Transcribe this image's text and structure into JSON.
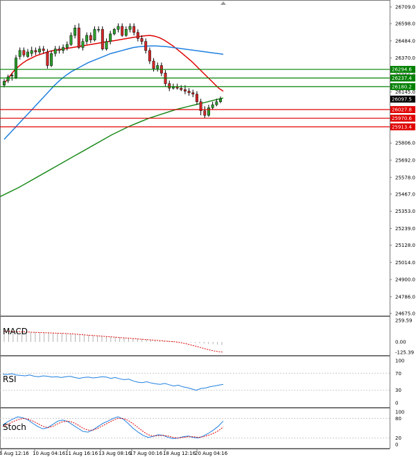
{
  "chart_data": {
    "type": "candlestick",
    "instrument_title": "",
    "price_axis": {
      "ticks": [
        "26709.0",
        "26598.0",
        "26484.0",
        "26370.0",
        "26256.0",
        "26145.0",
        "25806.0",
        "25692.0",
        "25578.0",
        "25467.0",
        "25353.0",
        "25239.0",
        "25128.0",
        "25014.0",
        "24900.0",
        "24786.0",
        "24675.0"
      ]
    },
    "time_axis": {
      "ticks": [
        "6 Aug 12:16",
        "10 Aug 04:16",
        "11 Aug 16:16",
        "13 Aug 08:16",
        "17 Aug 00:16",
        "18 Aug 12:16",
        "20 Aug 04:16"
      ]
    },
    "current_price": "26097.5",
    "levels": [
      {
        "value": "26294.6",
        "kind": "resistance",
        "color": "#008000"
      },
      {
        "value": "26237.4",
        "kind": "resistance",
        "color": "#008000"
      },
      {
        "value": "26180.2",
        "kind": "resistance",
        "color": "#008000"
      },
      {
        "value": "26027.8",
        "kind": "support",
        "color": "#e00000"
      },
      {
        "value": "25970.6",
        "kind": "support",
        "color": "#e00000"
      },
      {
        "value": "25913.4",
        "kind": "support",
        "color": "#e00000"
      }
    ],
    "candles": [
      [
        26190,
        26215,
        26175,
        26230
      ],
      [
        26220,
        26245,
        26205,
        26260
      ],
      [
        26250,
        26255,
        26220,
        26270
      ],
      [
        26240,
        26370,
        26230,
        26390
      ],
      [
        26380,
        26420,
        26360,
        26440
      ],
      [
        26420,
        26390,
        26375,
        26440
      ],
      [
        26380,
        26410,
        26370,
        26430
      ],
      [
        26400,
        26420,
        26380,
        26445
      ],
      [
        26420,
        26410,
        26390,
        26440
      ],
      [
        26410,
        26430,
        26395,
        26450
      ],
      [
        26430,
        26420,
        26400,
        26450
      ],
      [
        26410,
        26320,
        26300,
        26430
      ],
      [
        26320,
        26400,
        26310,
        26420
      ],
      [
        26400,
        26430,
        26380,
        26450
      ],
      [
        26430,
        26420,
        26400,
        26450
      ],
      [
        26420,
        26440,
        26400,
        26460
      ],
      [
        26440,
        26460,
        26420,
        26480
      ],
      [
        26460,
        26520,
        26450,
        26540
      ],
      [
        26520,
        26570,
        26500,
        26590
      ],
      [
        26570,
        26440,
        26430,
        26600
      ],
      [
        26440,
        26480,
        26420,
        26500
      ],
      [
        26480,
        26520,
        26460,
        26540
      ],
      [
        26520,
        26490,
        26470,
        26540
      ],
      [
        26490,
        26560,
        26480,
        26580
      ],
      [
        26560,
        26560,
        26540,
        26580
      ],
      [
        26560,
        26430,
        26420,
        26580
      ],
      [
        26430,
        26480,
        26420,
        26500
      ],
      [
        26480,
        26530,
        26460,
        26550
      ],
      [
        26530,
        26560,
        26520,
        26570
      ],
      [
        26560,
        26580,
        26540,
        26600
      ],
      [
        26580,
        26520,
        26510,
        26600
      ],
      [
        26520,
        26560,
        26510,
        26580
      ],
      [
        26560,
        26580,
        26540,
        26600
      ],
      [
        26580,
        26540,
        26520,
        26600
      ],
      [
        26540,
        26500,
        26480,
        26560
      ],
      [
        26500,
        26480,
        26460,
        26520
      ],
      [
        26480,
        26420,
        26400,
        26500
      ],
      [
        26420,
        26350,
        26330,
        26440
      ],
      [
        26350,
        26300,
        26280,
        26370
      ],
      [
        26300,
        26320,
        26280,
        26340
      ],
      [
        26320,
        26270,
        26250,
        26340
      ],
      [
        26270,
        26200,
        26180,
        26290
      ],
      [
        26200,
        26170,
        26150,
        26220
      ],
      [
        26170,
        26180,
        26160,
        26200
      ],
      [
        26180,
        26170,
        26160,
        26200
      ],
      [
        26170,
        26160,
        26150,
        26190
      ],
      [
        26160,
        26150,
        26130,
        26190
      ],
      [
        26150,
        26140,
        26120,
        26170
      ],
      [
        26140,
        26130,
        26110,
        26160
      ],
      [
        26130,
        26080,
        26060,
        26150
      ],
      [
        26080,
        26020,
        25990,
        26100
      ],
      [
        26020,
        25990,
        25970,
        26050
      ],
      [
        25990,
        26040,
        25980,
        26060
      ],
      [
        26040,
        26060,
        26030,
        26080
      ],
      [
        26060,
        26080,
        26050,
        26100
      ],
      [
        26080,
        26100,
        26070,
        26115
      ]
    ],
    "moving_averages": [
      {
        "color": "#e00000",
        "values": [
          26200,
          26240,
          26280,
          26310,
          26335,
          26355,
          26370,
          26385,
          26395,
          26405,
          26415,
          26420,
          26425,
          26430,
          26435,
          26440,
          26445,
          26450,
          26455,
          26460,
          26465,
          26470,
          26475,
          26480,
          26485,
          26490,
          26495,
          26500,
          26505,
          26510,
          26515,
          26518,
          26520,
          26515,
          26505,
          26490,
          26470,
          26450,
          26425,
          26400,
          26375,
          26350,
          26320,
          26290,
          26260,
          26230,
          26200,
          26170,
          26150
        ]
      },
      {
        "color": "#1e7fe0",
        "values": [
          25830,
          25870,
          25910,
          25950,
          25990,
          26030,
          26070,
          26110,
          26150,
          26190,
          26225,
          26255,
          26280,
          26300,
          26320,
          26340,
          26355,
          26370,
          26385,
          26400,
          26410,
          26420,
          26430,
          26440,
          26445,
          26448,
          26450,
          26450,
          26448,
          26445,
          26440,
          26435,
          26430,
          26425,
          26420,
          26415,
          26410,
          26405,
          26400,
          26395
        ]
      },
      {
        "color": "#1a8a1a",
        "values": [
          25450,
          25480,
          25510,
          25545,
          25580,
          25615,
          25650,
          25685,
          25720,
          25755,
          25790,
          25825,
          25860,
          25890,
          25920,
          25945,
          25970,
          25990,
          26010,
          26030,
          26045,
          26060,
          26075,
          26090,
          26105
        ]
      }
    ],
    "macd": {
      "label": "MACD",
      "axis_ticks": [
        "259.59",
        "0.00",
        "-125.39"
      ],
      "histogram": [
        130,
        128,
        126,
        124,
        122,
        120,
        118,
        116,
        114,
        112,
        110,
        108,
        106,
        104,
        102,
        100,
        96,
        92,
        88,
        84,
        80,
        76,
        72,
        68,
        64,
        60,
        56,
        52,
        48,
        44,
        40,
        36,
        32,
        28,
        24,
        20,
        16,
        12,
        8,
        4,
        0,
        -4,
        -8,
        -12,
        -16,
        -20,
        -24,
        -28,
        -32,
        -36
      ],
      "signal": [
        130,
        128,
        126,
        124,
        122,
        120,
        118,
        116,
        114,
        112,
        110,
        108,
        106,
        104,
        102,
        100,
        96,
        92,
        88,
        84,
        80,
        76,
        72,
        68,
        64,
        60,
        56,
        52,
        48,
        44,
        40,
        36,
        32,
        28,
        24,
        20,
        16,
        12,
        8,
        4,
        0,
        -8,
        -18,
        -30,
        -44,
        -58,
        -72,
        -86,
        -100,
        -110,
        -118,
        -124
      ]
    },
    "rsi": {
      "label": "RSI",
      "axis_ticks": [
        "100",
        "70",
        "30",
        "0"
      ],
      "values": [
        68,
        67,
        69,
        66,
        65,
        64,
        66,
        63,
        62,
        64,
        63,
        61,
        62,
        60,
        62,
        63,
        60,
        58,
        60,
        61,
        59,
        60,
        62,
        61,
        58,
        60,
        57,
        55,
        56,
        52,
        49,
        48,
        50,
        47,
        45,
        44,
        46,
        43,
        40,
        42,
        38,
        36,
        33,
        30,
        34,
        35,
        38,
        40,
        42,
        44
      ]
    },
    "stoch": {
      "label": "Stoch",
      "axis_ticks": [
        "100",
        "80",
        "20",
        "0"
      ],
      "k": [
        60,
        70,
        78,
        85,
        82,
        76,
        65,
        55,
        48,
        52,
        62,
        72,
        75,
        70,
        60,
        50,
        40,
        38,
        45,
        55,
        65,
        72,
        80,
        85,
        78,
        65,
        50,
        38,
        28,
        22,
        25,
        30,
        28,
        22,
        18,
        20,
        24,
        26,
        22,
        20,
        26,
        34,
        44,
        56,
        72
      ],
      "d": [
        55,
        62,
        70,
        76,
        80,
        78,
        72,
        64,
        56,
        52,
        56,
        64,
        70,
        72,
        68,
        60,
        50,
        44,
        44,
        50,
        58,
        66,
        74,
        80,
        80,
        74,
        64,
        52,
        40,
        30,
        26,
        27,
        28,
        26,
        22,
        20,
        22,
        24,
        24,
        22,
        24,
        28,
        34,
        42,
        54
      ]
    }
  }
}
